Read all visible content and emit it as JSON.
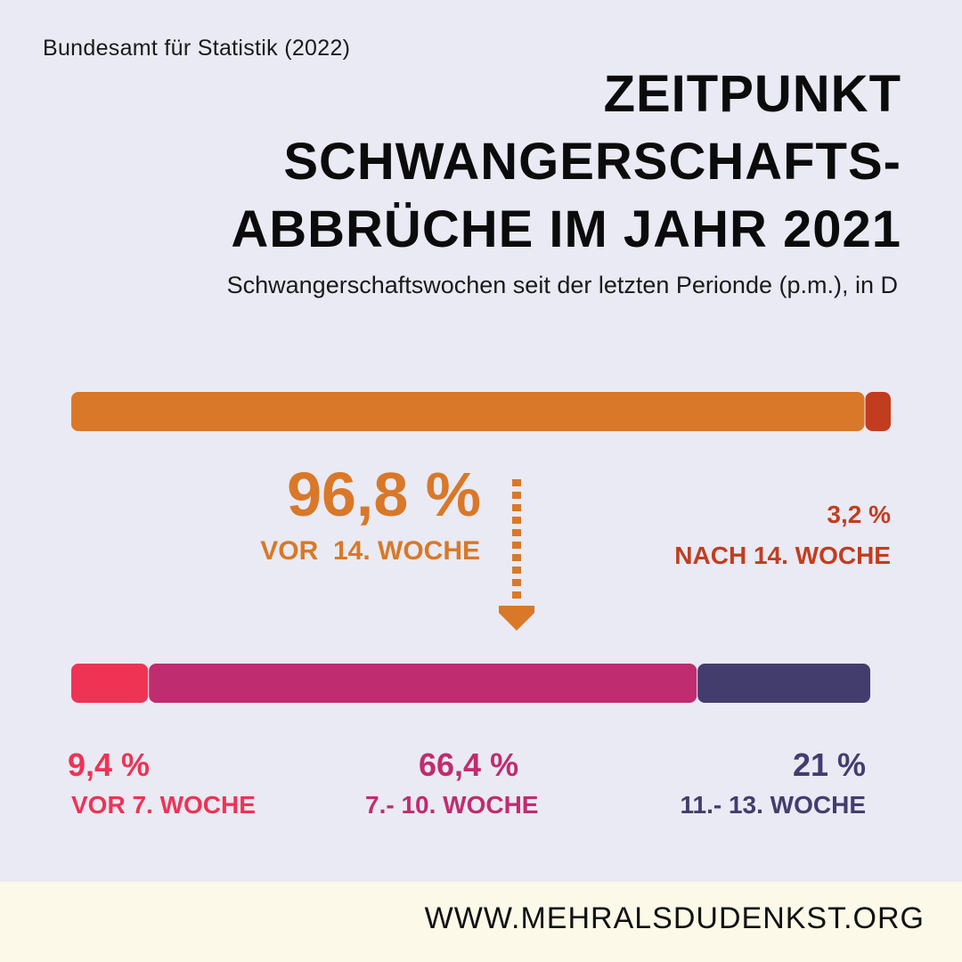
{
  "source": "Bundesamt für Statistik (2022)",
  "title_lines": [
    "ZEITPUNKT",
    "SCHWANGERSCHAFTS-",
    "ABBRÜCHE IM JAHR 2021"
  ],
  "subtitle": "Schwangerschaftswochen seit der letzten Perionde (p.m.), in D",
  "chart_data": [
    {
      "type": "bar",
      "orientation": "horizontal-stacked",
      "segments": [
        {
          "value": 96.8,
          "value_label": "96,8 %",
          "label": "VOR  14. WOCHE",
          "color": "#d97828"
        },
        {
          "value": 3.2,
          "value_label": "3,2 %",
          "label": "NACH 14. WOCHE",
          "color": "#c23d1f"
        }
      ]
    },
    {
      "type": "bar",
      "orientation": "horizontal-stacked",
      "segments": [
        {
          "value": 9.4,
          "value_label": "9,4 %",
          "label": "VOR 7. WOCHE",
          "color": "#ee3355"
        },
        {
          "value": 66.4,
          "value_label": "66,4 %",
          "label": "7.- 10. WOCHE",
          "color": "#c02c70"
        },
        {
          "value": 21,
          "value_label": "21 %",
          "label": "11.- 13. WOCHE",
          "color": "#433d6e"
        }
      ]
    }
  ],
  "footer": "WWW.MEHRALSDUDENKST.ORG",
  "colors": {
    "background": "#e9eaf4",
    "footer_bg": "#fcf9e8",
    "arrow": "#d97828"
  }
}
